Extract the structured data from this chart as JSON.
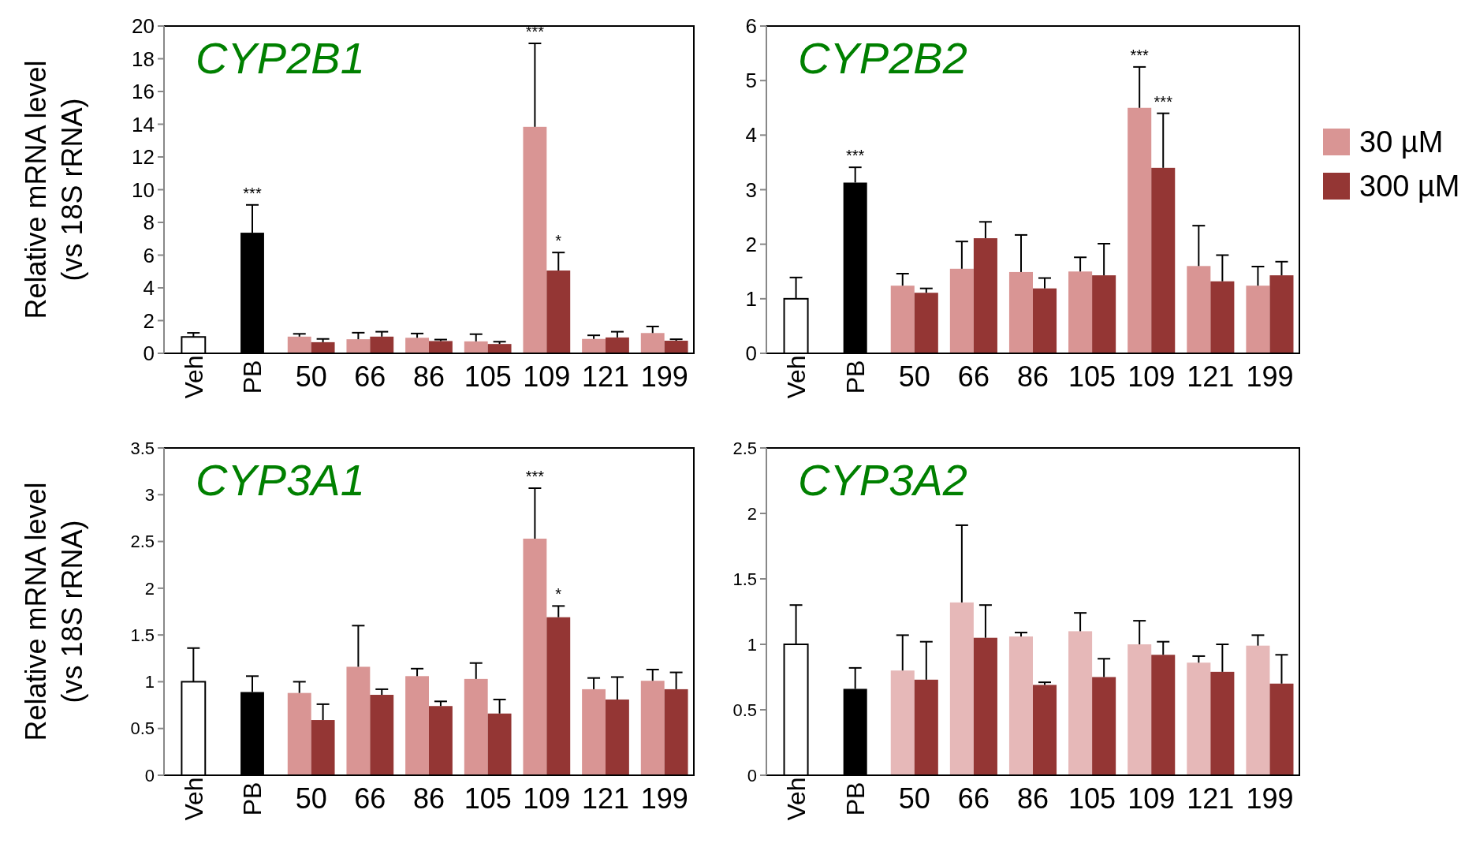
{
  "chart_data": [
    {
      "type": "bar",
      "title": "CYP2B1",
      "ylabel": "Relative mRNA level\n(vs 18S rRNA)",
      "categories": [
        "Veh",
        "PB",
        "50",
        "66",
        "86",
        "105",
        "109",
        "121",
        "199"
      ],
      "ylim": [
        0,
        20
      ],
      "yticks": [
        0,
        2,
        4,
        6,
        8,
        10,
        12,
        14,
        16,
        18,
        20
      ],
      "legend": false,
      "series": [
        {
          "colors": [
            "#ffffff",
            "#000000",
            null,
            null,
            null,
            null,
            null,
            null,
            null
          ],
          "values": [
            1,
            7.37,
            null,
            null,
            null,
            null,
            null,
            null,
            null
          ],
          "errors": [
            0.25,
            1.7,
            null,
            null,
            null,
            null,
            null,
            null,
            null
          ]
        },
        {
          "color": "#d99594",
          "values": [
            null,
            null,
            1.02,
            0.86,
            0.95,
            0.73,
            13.84,
            0.88,
            1.24
          ],
          "errors": [
            null,
            null,
            0.17,
            0.4,
            0.26,
            0.44,
            5.1,
            0.22,
            0.4
          ]
        },
        {
          "color": "#943634",
          "values": [
            null,
            null,
            0.68,
            1.02,
            0.75,
            0.57,
            5.06,
            0.97,
            0.77
          ],
          "errors": [
            null,
            null,
            0.2,
            0.3,
            0.09,
            0.14,
            1.1,
            0.35,
            0.09
          ]
        }
      ],
      "annotations": [
        {
          "text": "***",
          "x": "PB",
          "y": 7.37
        },
        "***",
        {
          "text": "*",
          "x": "109",
          "y": 5.06
        }
      ]
    },
    {
      "type": "bar",
      "title": "CYP2B2",
      "categories": [
        "Veh",
        "PB",
        "50",
        "66",
        "86",
        "105",
        "109",
        "121",
        "199"
      ],
      "ylim": [
        0,
        6
      ],
      "yticks": [
        0,
        1,
        2,
        3,
        4,
        5,
        6
      ],
      "legend": "right",
      "series": [
        {
          "colors": [
            "#ffffff",
            "#000000",
            null,
            null,
            null,
            null,
            null,
            null,
            null
          ],
          "values": [
            1,
            3.13,
            null,
            null,
            null,
            null,
            null,
            null,
            null
          ],
          "errors": [
            0.39,
            0.28,
            null,
            null,
            null,
            null,
            null,
            null,
            null
          ]
        },
        {
          "name": "30 µM",
          "color": "#d99594",
          "values": [
            null,
            null,
            1.24,
            1.55,
            1.49,
            1.5,
            4.5,
            1.6,
            1.24
          ],
          "errors": [
            null,
            null,
            0.22,
            0.5,
            0.68,
            0.26,
            0.75,
            0.74,
            0.35
          ]
        },
        {
          "name": "300 µM",
          "color": "#943634",
          "values": [
            null,
            null,
            1.11,
            2.11,
            1.19,
            1.43,
            3.4,
            1.32,
            1.43
          ],
          "errors": [
            null,
            null,
            0.08,
            0.3,
            0.19,
            0.58,
            1.0,
            0.48,
            0.25
          ]
        }
      ],
      "annotations": [
        {
          "text": "***",
          "x": "PB",
          "y": 3.13
        },
        {
          "text": "***",
          "x": "109",
          "y": 4.5
        },
        "***"
      ]
    },
    {
      "type": "bar",
      "title": "CYP3A1",
      "ylabel": "Relative mRNA level\n(vs 18S rRNA)",
      "categories": [
        "Veh",
        "PB",
        "50",
        "66",
        "86",
        "105",
        "109",
        "121",
        "199"
      ],
      "ylim": [
        0,
        3.5
      ],
      "yticks": [
        0,
        0.5,
        1,
        1.5,
        2,
        2.5,
        3,
        3.5
      ],
      "legend": false,
      "series": [
        {
          "colors": [
            "#ffffff",
            "#000000",
            null,
            null,
            null,
            null,
            null,
            null,
            null
          ],
          "values": [
            1,
            0.89,
            null,
            null,
            null,
            null,
            null,
            null,
            null
          ],
          "errors": [
            0.36,
            0.17,
            null,
            null,
            null,
            null,
            null,
            null,
            null
          ]
        },
        {
          "color": "#d99594",
          "values": [
            null,
            null,
            0.88,
            1.16,
            1.06,
            1.03,
            2.53,
            0.92,
            1.01
          ],
          "errors": [
            null,
            null,
            0.12,
            0.44,
            0.08,
            0.17,
            0.54,
            0.12,
            0.12
          ]
        },
        {
          "color": "#943634",
          "values": [
            null,
            null,
            0.59,
            0.86,
            0.74,
            0.66,
            1.69,
            0.81,
            0.92
          ],
          "errors": [
            null,
            null,
            0.17,
            0.06,
            0.05,
            0.15,
            0.12,
            0.24,
            0.18
          ]
        }
      ],
      "annotations": [
        "***",
        {
          "text": "*",
          "x": "109",
          "y": 1.69
        }
      ]
    },
    {
      "type": "bar",
      "title": "CYP3A2",
      "categories": [
        "Veh",
        "PB",
        "50",
        "66",
        "86",
        "105",
        "109",
        "121",
        "199"
      ],
      "ylim": [
        0,
        2.5
      ],
      "yticks": [
        0,
        0.5,
        1,
        1.5,
        2,
        2.5
      ],
      "legend": false,
      "series": [
        {
          "colors": [
            "#ffffff",
            "#000000",
            null,
            null,
            null,
            null,
            null,
            null,
            null
          ],
          "values": [
            1,
            0.66,
            null,
            null,
            null,
            null,
            null,
            null,
            null
          ],
          "errors": [
            0.3,
            0.16,
            null,
            null,
            null,
            null,
            null,
            null,
            null
          ]
        },
        {
          "color": "#e6b8b8",
          "values": [
            null,
            null,
            0.8,
            1.32,
            1.06,
            1.1,
            1.0,
            0.86,
            0.99
          ],
          "errors": [
            null,
            null,
            0.27,
            0.59,
            0.03,
            0.14,
            0.18,
            0.05,
            0.08
          ]
        },
        {
          "color": "#943634",
          "values": [
            null,
            null,
            0.73,
            1.05,
            0.69,
            0.75,
            0.92,
            0.79,
            0.7
          ],
          "errors": [
            null,
            null,
            0.29,
            0.25,
            0.02,
            0.14,
            0.1,
            0.21,
            0.22
          ]
        }
      ]
    }
  ]
}
